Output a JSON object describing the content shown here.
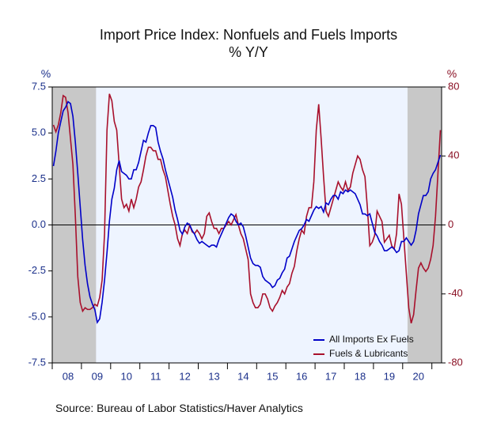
{
  "chart_data": {
    "type": "line",
    "title": "Import Price Index: Nonfuels and Fuels Imports",
    "subtitle": "% Y/Y",
    "y_label": "%",
    "y2_label": "%",
    "source": "Source:  Bureau of Labor Statistics/Haver Analytics",
    "legend": "lower right",
    "categories": [
      null,
      null,
      null,
      null,
      null,
      null,
      "08",
      null,
      null,
      null,
      null,
      null,
      null,
      null,
      null,
      null,
      null,
      null,
      "09",
      null,
      null,
      null,
      null,
      null,
      null,
      null,
      null,
      null,
      null,
      null,
      "10",
      null,
      null,
      null,
      null,
      null,
      null,
      null,
      null,
      null,
      null,
      null,
      "11",
      null,
      null,
      null,
      null,
      null,
      null,
      null,
      null,
      null,
      null,
      null,
      "12",
      null,
      null,
      null,
      null,
      null,
      null,
      null,
      null,
      null,
      null,
      null,
      "13",
      null,
      null,
      null,
      null,
      null,
      null,
      null,
      null,
      null,
      null,
      null,
      "14",
      null,
      null,
      null,
      null,
      null,
      null,
      null,
      null,
      null,
      null,
      null,
      "15",
      null,
      null,
      null,
      null,
      null,
      null,
      null,
      null,
      null,
      null,
      null,
      "16",
      null,
      null,
      null,
      null,
      null,
      null,
      null,
      null,
      null,
      null,
      null,
      "17",
      null,
      null,
      null,
      null,
      null,
      null,
      null,
      null,
      null,
      null,
      null,
      "18",
      null,
      null,
      null,
      null,
      null,
      null,
      null,
      null,
      null,
      null,
      null,
      "19",
      null,
      null,
      null,
      null,
      null,
      null,
      null,
      null,
      null,
      null,
      null,
      "20",
      null,
      null,
      null,
      null,
      null,
      null,
      null,
      null,
      null
    ],
    "ylim": [
      -7.5,
      7.5
    ],
    "yticks": [
      {
        "value": -7.5,
        "label": "-7.5"
      },
      {
        "value": -5,
        "label": "-5.0"
      },
      -2.5,
      {
        "value": 0,
        "label": "0.0"
      },
      2.5,
      {
        "value": 5,
        "label": "5.0"
      },
      7.5
    ],
    "y2lim": [
      -80,
      80
    ],
    "y2ticks": [
      -80,
      -40,
      0,
      40,
      80
    ],
    "series": [
      {
        "name": "All Imports Ex Fuels",
        "color": "#0000c8",
        "values": [
          3.2,
          4.0,
          5.0,
          5.6,
          6.2,
          6.4,
          6.7,
          6.6,
          5.9,
          4.5,
          2.8,
          1.0,
          -0.8,
          -2.2,
          -3.2,
          -3.9,
          -4.3,
          -4.6,
          -5.3,
          -5.1,
          -4.2,
          -3.0,
          -1.5,
          0.2,
          1.4,
          2.0,
          3.0,
          3.5,
          2.9,
          2.8,
          2.7,
          2.5,
          2.5,
          3.0,
          3.0,
          3.4,
          4.0,
          4.6,
          4.5,
          5.0,
          5.4,
          5.4,
          5.3,
          4.5,
          4.0,
          3.6,
          3.0,
          2.5,
          2.0,
          1.5,
          0.8,
          0.3,
          -0.3,
          -0.5,
          -0.1,
          0.1,
          0.0,
          -0.3,
          -0.5,
          -0.8,
          -1.0,
          -0.9,
          -1.0,
          -1.1,
          -1.2,
          -1.1,
          -1.1,
          -1.2,
          -0.8,
          -0.5,
          -0.2,
          0.1,
          0.4,
          0.6,
          0.5,
          0.2,
          0.0,
          0.1,
          -0.1,
          -0.6,
          -1.2,
          -1.8,
          -2.1,
          -2.2,
          -2.2,
          -2.3,
          -2.8,
          -3.0,
          -3.1,
          -3.2,
          -3.4,
          -3.3,
          -3.0,
          -2.9,
          -2.6,
          -2.4,
          -1.8,
          -1.7,
          -1.3,
          -0.9,
          -0.6,
          -0.3,
          -0.2,
          0.0,
          0.3,
          0.2,
          0.5,
          0.8,
          1.0,
          0.9,
          1.0,
          0.7,
          1.2,
          1.1,
          1.4,
          1.6,
          1.6,
          1.4,
          1.8,
          1.7,
          1.9,
          1.8,
          1.9,
          1.8,
          1.7,
          1.4,
          1.1,
          0.6,
          0.6,
          0.5,
          0.6,
          0.1,
          -0.4,
          -0.6,
          -0.9,
          -1.1,
          -1.4,
          -1.4,
          -1.3,
          -1.2,
          -1.3,
          -1.5,
          -1.4,
          -0.9,
          -0.9,
          -0.7,
          -0.9,
          -1.1,
          -0.9,
          -0.3,
          0.6,
          1.1,
          1.6,
          1.6,
          1.8,
          2.5,
          2.8,
          3.0,
          3.4,
          3.8
        ]
      },
      {
        "name": "Fuels & Lubricants",
        "color": "#a8102c",
        "axis": "y2",
        "values": [
          58,
          54,
          58,
          65,
          75,
          74,
          65,
          50,
          35,
          5,
          -30,
          -45,
          -50,
          -48,
          -49,
          -49,
          -48,
          -46,
          -47,
          -42,
          -32,
          -5,
          55,
          76,
          72,
          60,
          55,
          35,
          15,
          10,
          12,
          8,
          15,
          10,
          15,
          22,
          25,
          32,
          40,
          45,
          45,
          43,
          43,
          38,
          38,
          32,
          28,
          20,
          12,
          5,
          0,
          -8,
          -12,
          -5,
          -3,
          -5,
          0,
          -4,
          -5,
          -3,
          -5,
          -8,
          -5,
          5,
          7,
          2,
          -2,
          -2,
          -5,
          -2,
          -2,
          0,
          2,
          0,
          3,
          6,
          0,
          -5,
          -8,
          -14,
          -20,
          -40,
          -45,
          -48,
          -48,
          -46,
          -40,
          -40,
          -43,
          -48,
          -50,
          -47,
          -45,
          -42,
          -38,
          -40,
          -36,
          -34,
          -28,
          -24,
          -15,
          -8,
          -3,
          -5,
          5,
          10,
          10,
          25,
          55,
          70,
          50,
          28,
          8,
          5,
          10,
          15,
          20,
          25,
          22,
          20,
          25,
          20,
          22,
          30,
          35,
          40,
          38,
          32,
          28,
          10,
          -12,
          -10,
          -6,
          8,
          5,
          2,
          -10,
          -8,
          -6,
          -12,
          -14,
          -5,
          18,
          12,
          -8,
          -28,
          -48,
          -57,
          -52,
          -38,
          -25,
          -22,
          -25,
          -27,
          -25,
          -20,
          -12,
          5,
          30,
          55
        ]
      }
    ]
  }
}
